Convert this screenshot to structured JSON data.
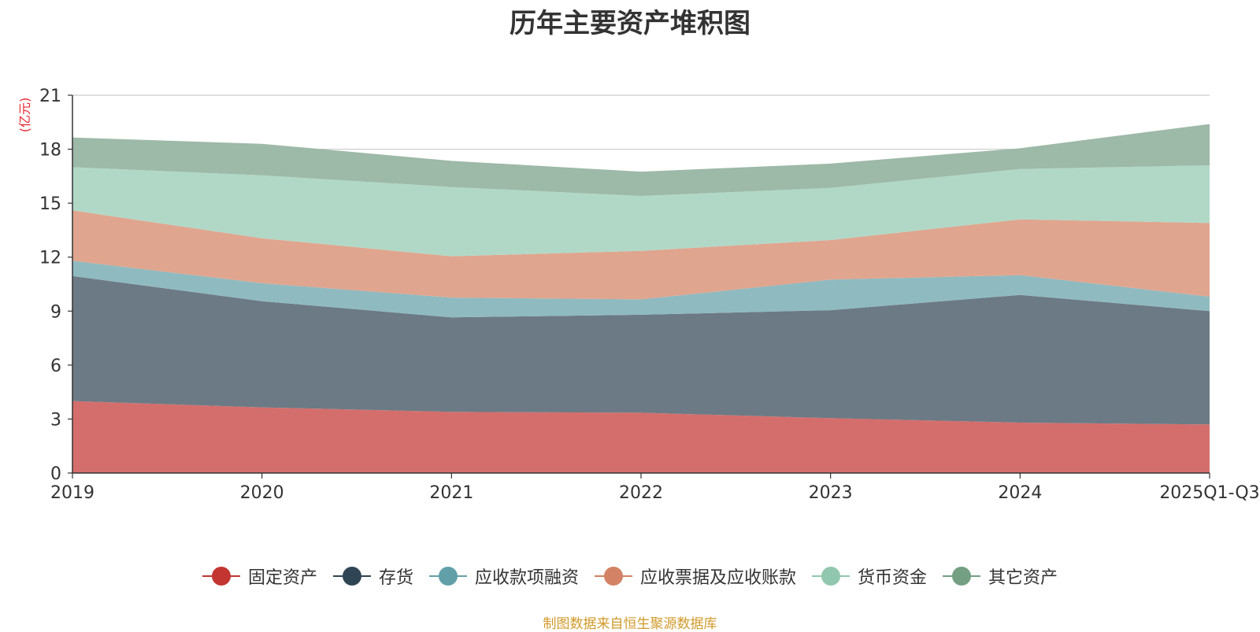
{
  "chart_data": {
    "type": "area",
    "stacked": true,
    "title": "历年主要资产堆积图",
    "ylabel": "(亿元)",
    "xlabel": "",
    "ylim": [
      0,
      21
    ],
    "yticks": [
      0,
      3,
      6,
      9,
      12,
      15,
      18,
      21
    ],
    "categories": [
      "2019",
      "2020",
      "2021",
      "2022",
      "2023",
      "2024",
      "2025Q1-Q3"
    ],
    "legend_position": "bottom",
    "series": [
      {
        "name": "固定资产",
        "color": "#c23531",
        "fill": "#d46e6c",
        "values": [
          4.0,
          3.65,
          3.4,
          3.35,
          3.05,
          2.8,
          2.7
        ]
      },
      {
        "name": "存货",
        "color": "#2f4554",
        "fill": "#6c7a85",
        "values": [
          6.95,
          5.9,
          5.25,
          5.45,
          6.0,
          7.1,
          6.3
        ]
      },
      {
        "name": "应收款项融资",
        "color": "#61a0a8",
        "fill": "#8fbac0",
        "values": [
          0.85,
          1.0,
          1.1,
          0.85,
          1.7,
          1.1,
          0.8
        ]
      },
      {
        "name": "应收票据及应收账款",
        "color": "#d48265",
        "fill": "#e0a58f",
        "values": [
          2.8,
          2.5,
          2.3,
          2.7,
          2.2,
          3.1,
          4.1
        ]
      },
      {
        "name": "货币资金",
        "color": "#91c7ae",
        "fill": "#b1d8c6",
        "values": [
          2.4,
          3.5,
          3.85,
          3.05,
          2.9,
          2.8,
          3.2
        ]
      },
      {
        "name": "其它资产",
        "color": "#749f83",
        "fill": "#9db9a7",
        "values": [
          1.65,
          1.75,
          1.45,
          1.35,
          1.35,
          1.15,
          2.3
        ]
      }
    ]
  },
  "source_text": "制图数据来自恒生聚源数据库"
}
